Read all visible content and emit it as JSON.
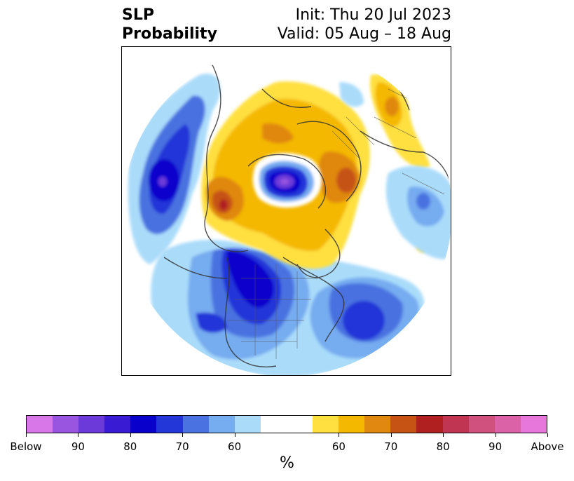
{
  "header": {
    "title_line1": "SLP",
    "title_line2": "Probability",
    "init": "Init: Thu 20 Jul 2023",
    "valid": "Valid: 05 Aug – 18 Aug"
  },
  "map": {
    "projection": "north-polar-stereographic",
    "features": [
      "coastlines",
      "country-borders",
      "state-borders"
    ]
  },
  "colorbar": {
    "unit": "%",
    "colors": [
      "#d877e8",
      "#9a55e0",
      "#6c3ad8",
      "#3a1bd4",
      "#0a00cc",
      "#2336d8",
      "#4a72e0",
      "#76acf0",
      "#aadcfa",
      "#ffffff",
      "#ffffff",
      "#ffe040",
      "#f4b800",
      "#e08810",
      "#c65214",
      "#b02020",
      "#c03552",
      "#d0507e",
      "#dc62a8",
      "#e877dc"
    ],
    "tick_labels": [
      "Below",
      "90",
      "80",
      "70",
      "60",
      "60",
      "70",
      "80",
      "90",
      "Above"
    ]
  }
}
